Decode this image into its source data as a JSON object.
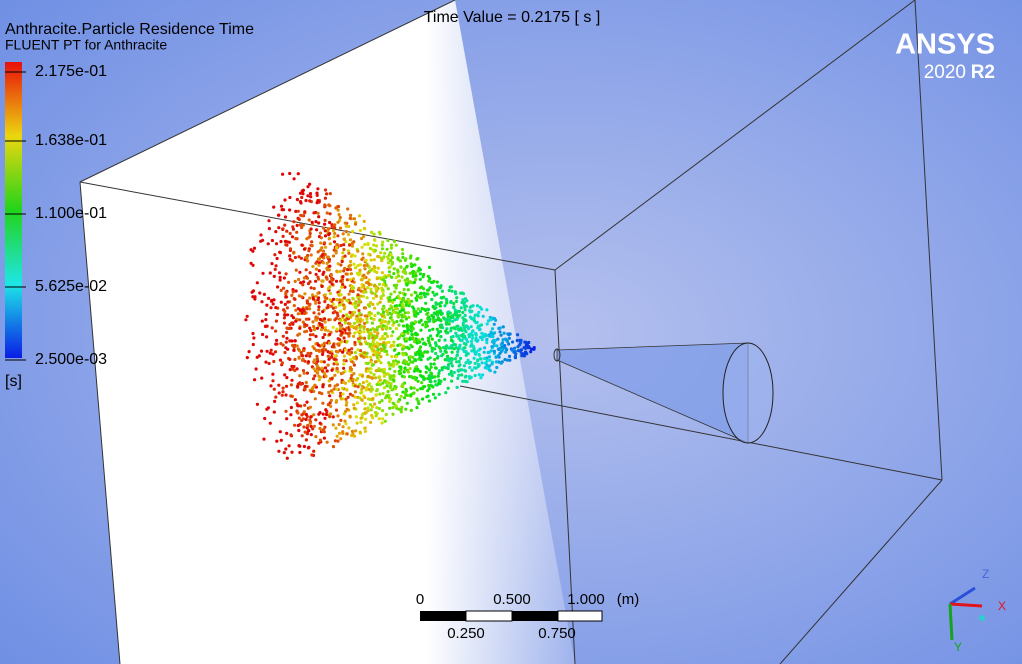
{
  "legend": {
    "title": "Anthracite.Particle Residence Time",
    "subtitle": "FLUENT PT for Anthracite",
    "labels": [
      "2.175e-01",
      "1.638e-01",
      "1.100e-01",
      "5.625e-02",
      "2.500e-03"
    ],
    "unit": "[s]"
  },
  "time_value": "Time Value = 0.2175 [ s ]",
  "logo": {
    "brand": "ANSYS",
    "year": "2020",
    "release": "R2"
  },
  "scale_bar": {
    "top_labels": [
      "0",
      "0.500",
      "1.000"
    ],
    "unit": "(m)",
    "bottom_labels": [
      "0.250",
      "0.750"
    ]
  },
  "triad": {
    "z": "Z",
    "x": "X",
    "y": "Y"
  }
}
